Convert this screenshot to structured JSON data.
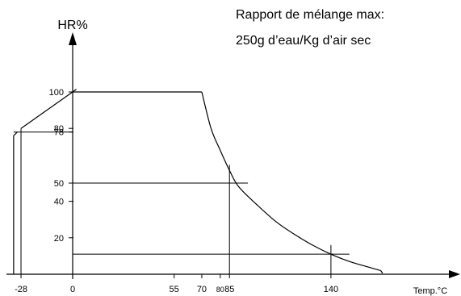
{
  "chart_data": {
    "type": "line",
    "ylabel": "HR%",
    "xlabel": "Temp.°C",
    "annotation": [
      "Rapport de mélange max:",
      "250g d’eau/Kg d’air sec"
    ],
    "x_ticks": [
      {
        "value": -28,
        "label": "-28"
      },
      {
        "value": 0,
        "label": "0"
      },
      {
        "value": 55,
        "label": "55"
      },
      {
        "value": 70,
        "label": "70"
      },
      {
        "value": 80,
        "label": "80"
      },
      {
        "value": 85,
        "label": "85"
      },
      {
        "value": 140,
        "label": "140"
      }
    ],
    "y_ticks": [
      {
        "value": 100,
        "label": "100"
      },
      {
        "value": 80,
        "label": "80"
      },
      {
        "value": 78,
        "label": "78"
      },
      {
        "value": 50,
        "label": "50"
      },
      {
        "value": 40,
        "label": "40"
      },
      {
        "value": 20,
        "label": "20"
      }
    ],
    "envelope": {
      "left_edge": [
        [
          -32,
          0
        ],
        [
          -32,
          76
        ],
        [
          -30,
          78
        ]
      ],
      "low_temp_ramp": [
        [
          -28,
          80
        ],
        [
          0,
          100
        ]
      ],
      "top_plateau": [
        [
          0,
          100
        ],
        [
          70,
          100
        ]
      ],
      "max_mixing_ratio_curve": [
        [
          70,
          100
        ],
        [
          75,
          80
        ],
        [
          80,
          68
        ],
        [
          85,
          57
        ],
        [
          90,
          48
        ],
        [
          100,
          38
        ],
        [
          110,
          29
        ],
        [
          120,
          22
        ],
        [
          130,
          16
        ],
        [
          140,
          11
        ],
        [
          150,
          7
        ],
        [
          160,
          4
        ],
        [
          167,
          2
        ]
      ],
      "curve_end_hook": [
        [
          167,
          2
        ],
        [
          168,
          0.5
        ]
      ]
    },
    "reference_lines": [
      {
        "type": "horizontal",
        "y": 78,
        "x": [
          -32,
          0
        ]
      },
      {
        "type": "vertical",
        "x": -28,
        "y": [
          0,
          80
        ]
      },
      {
        "type": "horizontal",
        "y": 50,
        "x": [
          0,
          95
        ]
      },
      {
        "type": "vertical",
        "x": 85,
        "y": [
          0,
          60
        ]
      },
      {
        "type": "horizontal",
        "y": 11,
        "x": [
          0,
          150
        ]
      },
      {
        "type": "vertical",
        "x": 140,
        "y": [
          0,
          16
        ]
      }
    ],
    "xlim": [
      -38,
      180
    ],
    "ylim": [
      0,
      115
    ],
    "grid": false,
    "legend": "none"
  }
}
